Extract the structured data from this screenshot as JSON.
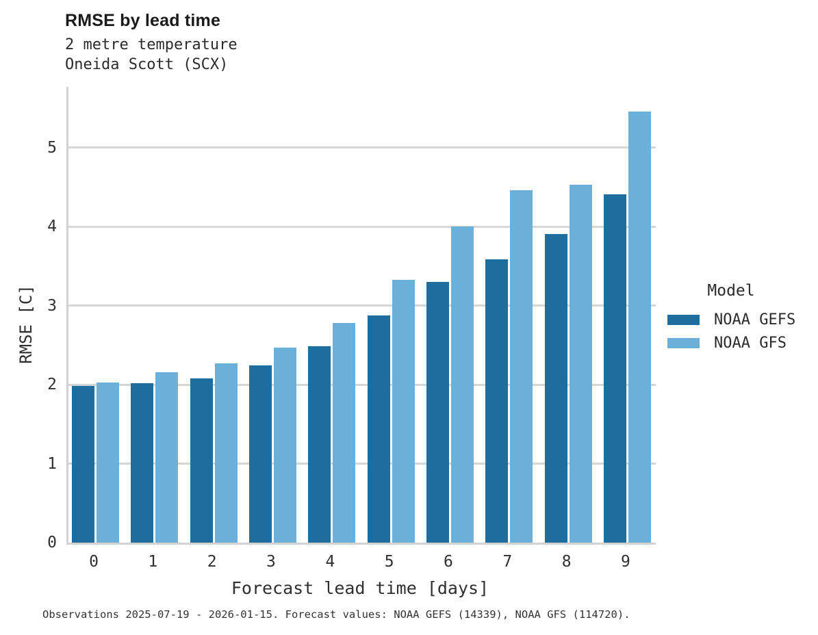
{
  "title": "RMSE by lead time",
  "subtitle_line1": "2 metre temperature",
  "subtitle_line2": "Oneida Scott (SCX)",
  "caption": "Observations 2025-07-19 - 2026-01-15. Forecast values: NOAA GEFS (14339), NOAA GFS (114720).",
  "legend": {
    "title": "Model",
    "entries": [
      {
        "label": "NOAA GEFS",
        "color": "#1d6e9e"
      },
      {
        "label": "NOAA GFS",
        "color": "#6bb0d8"
      }
    ]
  },
  "chart_data": {
    "type": "bar",
    "title": "RMSE by lead time",
    "subtitle": [
      "2 metre temperature",
      "Oneida Scott (SCX)"
    ],
    "xlabel": "Forecast lead time [days]",
    "ylabel": "RMSE [C]",
    "categories": [
      "0",
      "1",
      "2",
      "3",
      "4",
      "5",
      "6",
      "7",
      "8",
      "9"
    ],
    "series": [
      {
        "name": "NOAA GEFS",
        "color": "#1d6e9e",
        "values": [
          1.98,
          2.02,
          2.08,
          2.24,
          2.49,
          2.88,
          3.3,
          3.59,
          3.91,
          4.41
        ]
      },
      {
        "name": "NOAA GFS",
        "color": "#6bb0d8",
        "values": [
          2.03,
          2.16,
          2.27,
          2.47,
          2.78,
          3.33,
          4.0,
          4.46,
          4.53,
          5.46
        ]
      }
    ],
    "ylim": [
      0,
      5.77
    ],
    "yticks": [
      0,
      1,
      2,
      3,
      4,
      5
    ],
    "grid": true,
    "gridline_color": "#d6d6d6",
    "legend_position": "right",
    "legend_title": "Model",
    "caption": "Observations 2025-07-19 - 2026-01-15. Forecast values: NOAA GEFS (14339), NOAA GFS (114720)."
  }
}
